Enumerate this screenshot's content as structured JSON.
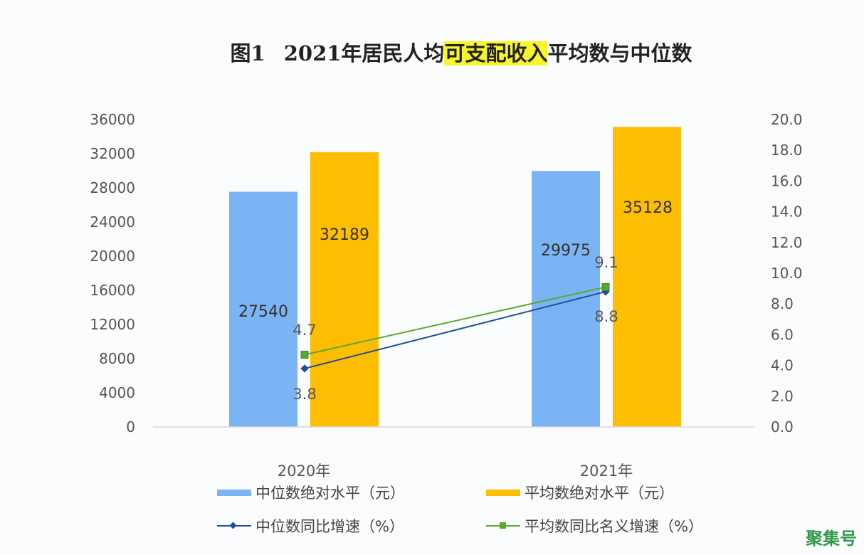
{
  "title": {
    "prefix_num": "图1",
    "prefix": "2021年居民人均",
    "highlight": "可支配收入",
    "suffix": "平均数与中位数"
  },
  "watermark": "聚集号",
  "colors": {
    "median_bar": "#7ab4f5",
    "mean_bar": "#fdbd00",
    "median_line": "#1f4e9c",
    "mean_line": "#5aa832",
    "highlight": "#f8f52a"
  },
  "chart_data": {
    "type": "bar",
    "title": "图1 2021年居民人均可支配收入平均数与中位数",
    "categories": [
      "2020年",
      "2021年"
    ],
    "left_axis": {
      "range": [
        0,
        36000
      ],
      "ticks": [
        "0",
        "4000",
        "8000",
        "12000",
        "16000",
        "20000",
        "24000",
        "28000",
        "32000",
        "36000"
      ]
    },
    "right_axis": {
      "range": [
        0,
        20
      ],
      "ticks": [
        "0.0",
        "2.0",
        "4.0",
        "6.0",
        "8.0",
        "10.0",
        "12.0",
        "14.0",
        "16.0",
        "18.0",
        "20.0"
      ]
    },
    "series": [
      {
        "name": "中位数绝对水平（元）",
        "type": "bar",
        "axis": "left",
        "values": [
          27540,
          29975
        ],
        "labels": [
          "27540",
          "29975"
        ]
      },
      {
        "name": "平均数绝对水平（元）",
        "type": "bar",
        "axis": "left",
        "values": [
          32189,
          35128
        ],
        "labels": [
          "32189",
          "35128"
        ]
      },
      {
        "name": "中位数同比增速（%）",
        "type": "line",
        "axis": "right",
        "marker": "diamond",
        "values": [
          3.8,
          8.8
        ],
        "labels": [
          "3.8",
          "8.8"
        ]
      },
      {
        "name": "平均数同比名义增速（%）",
        "type": "line",
        "axis": "right",
        "marker": "square",
        "values": [
          4.7,
          9.1
        ],
        "labels": [
          "4.7",
          "9.1"
        ]
      }
    ],
    "legend_position": "bottom",
    "grid": false
  }
}
